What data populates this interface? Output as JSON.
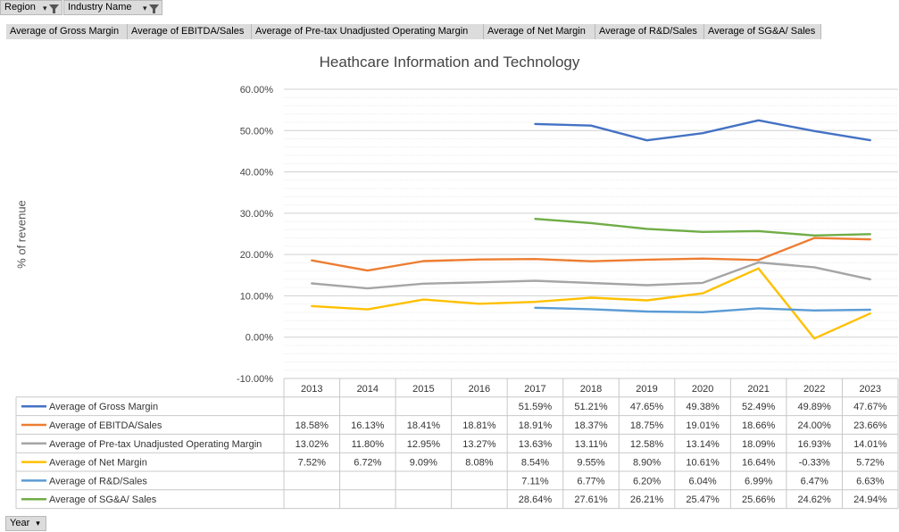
{
  "filters": {
    "region_label": "Region",
    "industry_label": "Industry Name"
  },
  "value_buttons": [
    "Average of Gross Margin",
    "Average of EBITDA/Sales",
    "Average of Pre-tax Unadjusted Operating Margin",
    "Average of Net Margin",
    "Average of R&D/Sales",
    "Average of SG&A/ Sales"
  ],
  "axis_button_label": "Year",
  "icons": {
    "filter": "funnel-filter-icon",
    "dropdown": "dropdown-arrow-icon"
  },
  "chart_data": {
    "type": "line",
    "title": "Heathcare Information and Technology",
    "ylabel": "% of revenue",
    "xlabel": "",
    "ylim": [
      -10,
      60
    ],
    "yticks": [
      "-10.00%",
      "0.00%",
      "10.00%",
      "20.00%",
      "30.00%",
      "40.00%",
      "50.00%",
      "60.00%"
    ],
    "grid": true,
    "legend": "data-table",
    "categories": [
      "2013",
      "2014",
      "2015",
      "2016",
      "2017",
      "2018",
      "2019",
      "2020",
      "2021",
      "2022",
      "2023"
    ],
    "series": [
      {
        "name": "Average of Gross Margin",
        "color": "#4472C4",
        "values": [
          null,
          null,
          null,
          null,
          51.59,
          51.21,
          47.65,
          49.38,
          52.49,
          49.89,
          47.67
        ],
        "labels": [
          "",
          "",
          "",
          "",
          "51.59%",
          "51.21%",
          "47.65%",
          "49.38%",
          "52.49%",
          "49.89%",
          "47.67%"
        ]
      },
      {
        "name": "Average of EBITDA/Sales",
        "color": "#ED7D31",
        "values": [
          18.58,
          16.13,
          18.41,
          18.81,
          18.91,
          18.37,
          18.75,
          19.01,
          18.66,
          24.0,
          23.66
        ],
        "labels": [
          "18.58%",
          "16.13%",
          "18.41%",
          "18.81%",
          "18.91%",
          "18.37%",
          "18.75%",
          "19.01%",
          "18.66%",
          "24.00%",
          "23.66%"
        ]
      },
      {
        "name": "Average of Pre-tax Unadjusted Operating Margin",
        "color": "#A5A5A5",
        "values": [
          13.02,
          11.8,
          12.95,
          13.27,
          13.63,
          13.11,
          12.58,
          13.14,
          18.09,
          16.93,
          14.01
        ],
        "labels": [
          "13.02%",
          "11.80%",
          "12.95%",
          "13.27%",
          "13.63%",
          "13.11%",
          "12.58%",
          "13.14%",
          "18.09%",
          "16.93%",
          "14.01%"
        ]
      },
      {
        "name": "Average of Net Margin",
        "color": "#FFC000",
        "values": [
          7.52,
          6.72,
          9.09,
          8.08,
          8.54,
          9.55,
          8.9,
          10.61,
          16.64,
          -0.33,
          5.72
        ],
        "labels": [
          "7.52%",
          "6.72%",
          "9.09%",
          "8.08%",
          "8.54%",
          "9.55%",
          "8.90%",
          "10.61%",
          "16.64%",
          "-0.33%",
          "5.72%"
        ]
      },
      {
        "name": "Average of R&D/Sales",
        "color": "#5B9BD5",
        "values": [
          null,
          null,
          null,
          null,
          7.11,
          6.77,
          6.2,
          6.04,
          6.99,
          6.47,
          6.63
        ],
        "labels": [
          "",
          "",
          "",
          "",
          "7.11%",
          "6.77%",
          "6.20%",
          "6.04%",
          "6.99%",
          "6.47%",
          "6.63%"
        ]
      },
      {
        "name": "Average of SG&A/ Sales",
        "color": "#70AD47",
        "values": [
          null,
          null,
          null,
          null,
          28.64,
          27.61,
          26.21,
          25.47,
          25.66,
          24.62,
          24.94
        ],
        "labels": [
          "",
          "",
          "",
          "",
          "28.64%",
          "27.61%",
          "26.21%",
          "25.47%",
          "25.66%",
          "24.62%",
          "24.94%"
        ]
      }
    ]
  }
}
